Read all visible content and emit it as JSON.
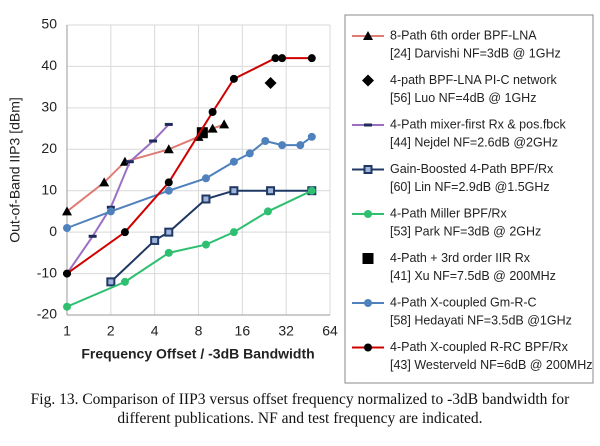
{
  "chart_data": {
    "type": "line",
    "x_scale": "log2",
    "ylabel": "Out-of-Band IIP3 [dBm]",
    "xlabel": "Frequency Offset / -3dB Bandwidth",
    "xlim": [
      1,
      64
    ],
    "xticks": [
      1,
      2,
      4,
      8,
      16,
      32,
      64
    ],
    "ylim": [
      -20,
      50
    ],
    "yticks": [
      -20,
      -10,
      0,
      10,
      20,
      30,
      40,
      50
    ],
    "grid": true,
    "series": [
      {
        "name": "8-Path 6th order BPF-LNA",
        "note": "[24] Darvishi NF=3dB @ 1GHz",
        "color": "#e07b74",
        "marker": "triangle",
        "marker_color": "#000000",
        "line": true,
        "x": [
          1,
          1.8,
          2.5,
          5,
          8,
          10,
          12
        ],
        "values": [
          5,
          12,
          17,
          20,
          23,
          25,
          26
        ]
      },
      {
        "name": "4-path BPF-LNA PI-C network",
        "note": "[56] Luo NF=4dB @ 1GHz",
        "color": "#000000",
        "marker": "diamond",
        "marker_color": "#000000",
        "line": false,
        "x": [
          25
        ],
        "values": [
          36
        ]
      },
      {
        "name": "4-Path mixer-first Rx & pos.fbck",
        "note": "[44] Nejdel NF=2.6dB @2GHz",
        "color": "#9b6fc4",
        "marker": "dash",
        "marker_color": "#1f2a5a",
        "line": true,
        "x": [
          1,
          1.5,
          2,
          2.7,
          3.9,
          5
        ],
        "values": [
          -10,
          -1,
          6,
          17,
          22,
          26
        ]
      },
      {
        "name": "Gain-Boosted 4-Path BPF/Rx",
        "note": "[60] Lin NF=2.9dB @1.5GHz",
        "color": "#1f3864",
        "marker": "square",
        "marker_color": "#1f3864",
        "line": true,
        "x": [
          2,
          4,
          5,
          9,
          14,
          25,
          48
        ],
        "values": [
          -12,
          -2,
          0,
          8,
          10,
          10,
          10
        ]
      },
      {
        "name": "4-Path Miller BPF/Rx",
        "note": "[53] Park NF=3dB @ 2GHz",
        "color": "#2fbf71",
        "marker": "circle",
        "marker_color": "#2fbf71",
        "line": true,
        "x": [
          1,
          2.5,
          5,
          9,
          14,
          24,
          48
        ],
        "values": [
          -18,
          -12,
          -5,
          -3,
          0,
          5,
          10
        ]
      },
      {
        "name": "4-Path + 3rd order IIR Rx",
        "note": "[41] Xu NF=7.5dB @ 200MHz",
        "color": "#000000",
        "marker": "square",
        "marker_color": "#000000",
        "line": false,
        "x": [
          8.5
        ],
        "values": [
          24
        ]
      },
      {
        "name": "4-Path X-coupled Gm-R-C",
        "note": "[58] Hedayati NF=3.5dB @1GHz",
        "color": "#4f81bd",
        "marker": "circle",
        "marker_color": "#4f81bd",
        "line": true,
        "x": [
          1,
          2,
          5,
          9,
          14,
          18,
          23,
          30,
          40,
          48
        ],
        "values": [
          1,
          5,
          10,
          13,
          17,
          19,
          22,
          21,
          21,
          23
        ]
      },
      {
        "name": "4-Path X-coupled R-RC BPF/Rx",
        "note": "[43] Westerveld NF=6dB @ 200MHz",
        "color": "#d00000",
        "marker": "circle",
        "marker_color": "#000000",
        "line": true,
        "x": [
          1,
          2.5,
          5,
          10,
          14,
          27,
          30,
          48
        ],
        "values": [
          -10,
          0,
          12,
          29,
          37,
          42,
          42,
          42
        ]
      }
    ],
    "caption": "Fig. 13. Comparison of IIP3 versus offset frequency normalized to -3dB bandwidth for different publications. NF and test frequency are indicated."
  }
}
